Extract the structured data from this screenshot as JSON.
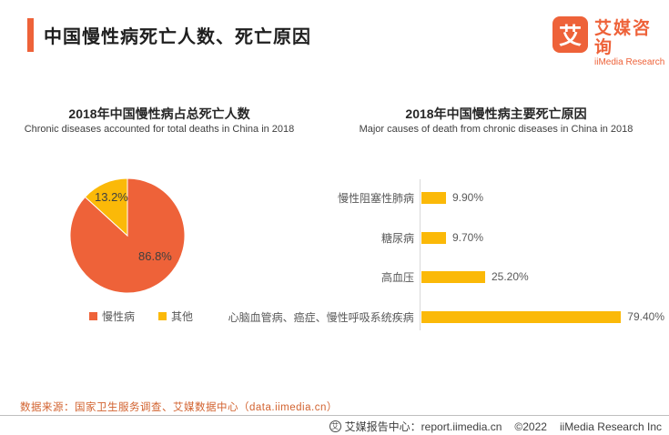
{
  "header": {
    "title": "中国慢性病死亡人数、死亡原因",
    "logo": {
      "mark": "艾",
      "name_cn": "艾媒咨询",
      "name_en": "iiMedia Research"
    }
  },
  "colors": {
    "accent_orange": "#EE6239",
    "gold": "#FBB908",
    "source_text": "#D2622F"
  },
  "chart_data": [
    {
      "type": "pie",
      "title": "2018年中国慢性病占总死亡人数",
      "subtitle": "Chronic diseases accounted for total deaths in China in 2018",
      "categories": [
        "慢性病",
        "其他"
      ],
      "values": [
        86.8,
        13.2
      ],
      "value_labels": [
        "86.8%",
        "13.2%"
      ],
      "colors": [
        "#EE6239",
        "#FBB908"
      ],
      "legend_position": "bottom"
    },
    {
      "type": "bar",
      "orientation": "horizontal",
      "title": "2018年中国慢性病主要死亡原因",
      "subtitle": "Major causes of death from chronic diseases in China in 2018",
      "categories": [
        "慢性阻塞性肺病",
        "糖尿病",
        "高血压",
        "心脑血管病、癌症、慢性呼吸系统疾病"
      ],
      "values": [
        9.9,
        9.7,
        25.2,
        79.4
      ],
      "value_labels": [
        "9.90%",
        "9.70%",
        "25.20%",
        "79.40%"
      ],
      "bar_color": "#FBB908",
      "xlim": [
        0,
        80
      ],
      "grid": false,
      "legend_position": "none"
    }
  ],
  "footnote": {
    "source": "数据来源：国家卫生服务调查、艾媒数据中心（data.iimedia.cn）"
  },
  "footer": {
    "icon": "艾",
    "report_center": "艾媒报告中心：report.iimedia.cn",
    "copyright": "©2022",
    "company": "iiMedia Research Inc"
  }
}
